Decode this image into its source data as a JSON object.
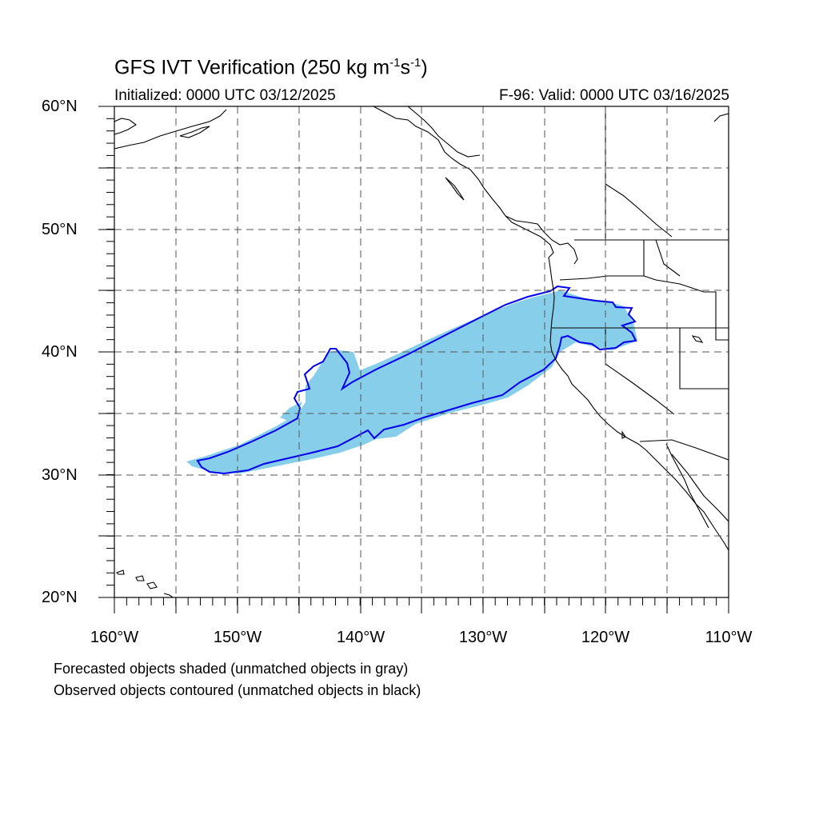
{
  "title": "GFS IVT Verification (250 kg m",
  "title_exp1": "-1",
  "title_mid": "s",
  "title_exp2": "-1",
  "title_end": ")",
  "initialized": "Initialized: 0000 UTC 03/12/2025",
  "valid": "F-96: Valid: 0000 UTC 03/16/2025",
  "lat_labels": {
    "l60": "60°N",
    "l50": "50°N",
    "l40": "40°N",
    "l30": "30°N",
    "l20": "20°N"
  },
  "lon_labels": {
    "w160": "160°W",
    "w150": "150°W",
    "w140": "140°W",
    "w130": "130°W",
    "w120": "120°W",
    "w110": "110°W"
  },
  "notes": {
    "forecast": "Forecasted objects shaded (unmatched objects in gray)",
    "observed": "Observed objects contoured (unmatched objects in black)"
  },
  "colors": {
    "forecast_fill": "#87ceea",
    "observed_contour": "#0000ee",
    "coastline": "#000000",
    "grid": "#555555"
  }
}
